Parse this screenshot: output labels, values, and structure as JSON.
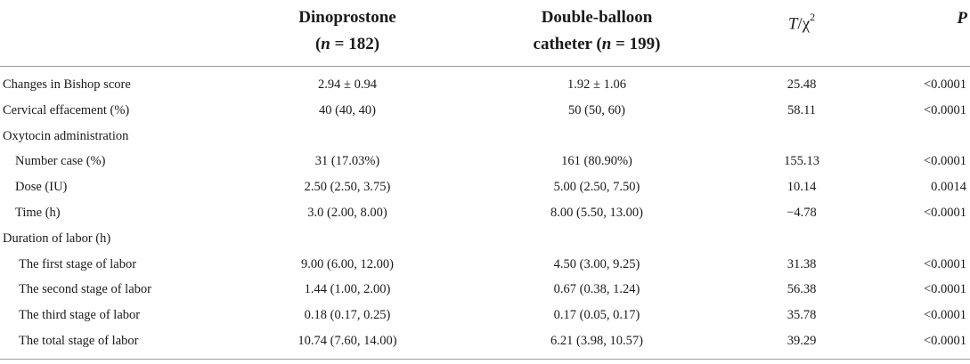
{
  "header": {
    "col_dino_line1": "Dinoprostone",
    "col_dino_n_prefix": "(",
    "col_dino_n_var": "n",
    "col_dino_n_rest": " = 182)",
    "col_balloon_line1": "Double-balloon",
    "col_balloon_line2_pre": "catheter (",
    "col_balloon_n_var": "n",
    "col_balloon_n_rest": " = 199)",
    "col_stat_T": "T",
    "col_stat_sep": "/χ",
    "col_stat_sup": "2",
    "col_p": "P"
  },
  "rows": [
    {
      "label": "Changes in Bishop score",
      "dino": "2.94 ± 0.94",
      "balloon": "1.92 ± 1.06",
      "stat": "25.48",
      "p": "<0.0001"
    },
    {
      "label": "Cervical effacement (%)",
      "dino": "40 (40, 40)",
      "balloon": "50 (50, 60)",
      "stat": "58.11",
      "p": "<0.0001"
    },
    {
      "label": "Oxytocin administration",
      "dino": "",
      "balloon": "",
      "stat": "",
      "p": ""
    },
    {
      "label": "Number case (%)",
      "dino": "31 (17.03%)",
      "balloon": "161 (80.90%)",
      "stat": "155.13",
      "p": "<0.0001"
    },
    {
      "label": "Dose (IU)",
      "dino": "2.50 (2.50, 3.75)",
      "balloon": "5.00 (2.50, 7.50)",
      "stat": "10.14",
      "p": "0.0014"
    },
    {
      "label": "Time (h)",
      "dino": "3.0 (2.00, 8.00)",
      "balloon": "8.00 (5.50, 13.00)",
      "stat": "−4.78",
      "p": "<0.0001"
    },
    {
      "label": "Duration of labor (h)",
      "dino": "",
      "balloon": "",
      "stat": "",
      "p": ""
    },
    {
      "label": "The first stage of labor",
      "dino": "9.00 (6.00, 12.00)",
      "balloon": "4.50 (3.00, 9.25)",
      "stat": "31.38",
      "p": "<0.0001"
    },
    {
      "label": "The second stage of labor",
      "dino": "1.44 (1.00, 2.00)",
      "balloon": "0.67 (0.38, 1.24)",
      "stat": "56.38",
      "p": "<0.0001"
    },
    {
      "label": "The third stage of labor",
      "dino": "0.18 (0.17, 0.25)",
      "balloon": "0.17 (0.05, 0.17)",
      "stat": "35.78",
      "p": "<0.0001"
    },
    {
      "label": "The total stage of labor",
      "dino": "10.74 (7.60, 14.00)",
      "balloon": "6.21 (3.98, 10.57)",
      "stat": "39.29",
      "p": "<0.0001"
    }
  ]
}
